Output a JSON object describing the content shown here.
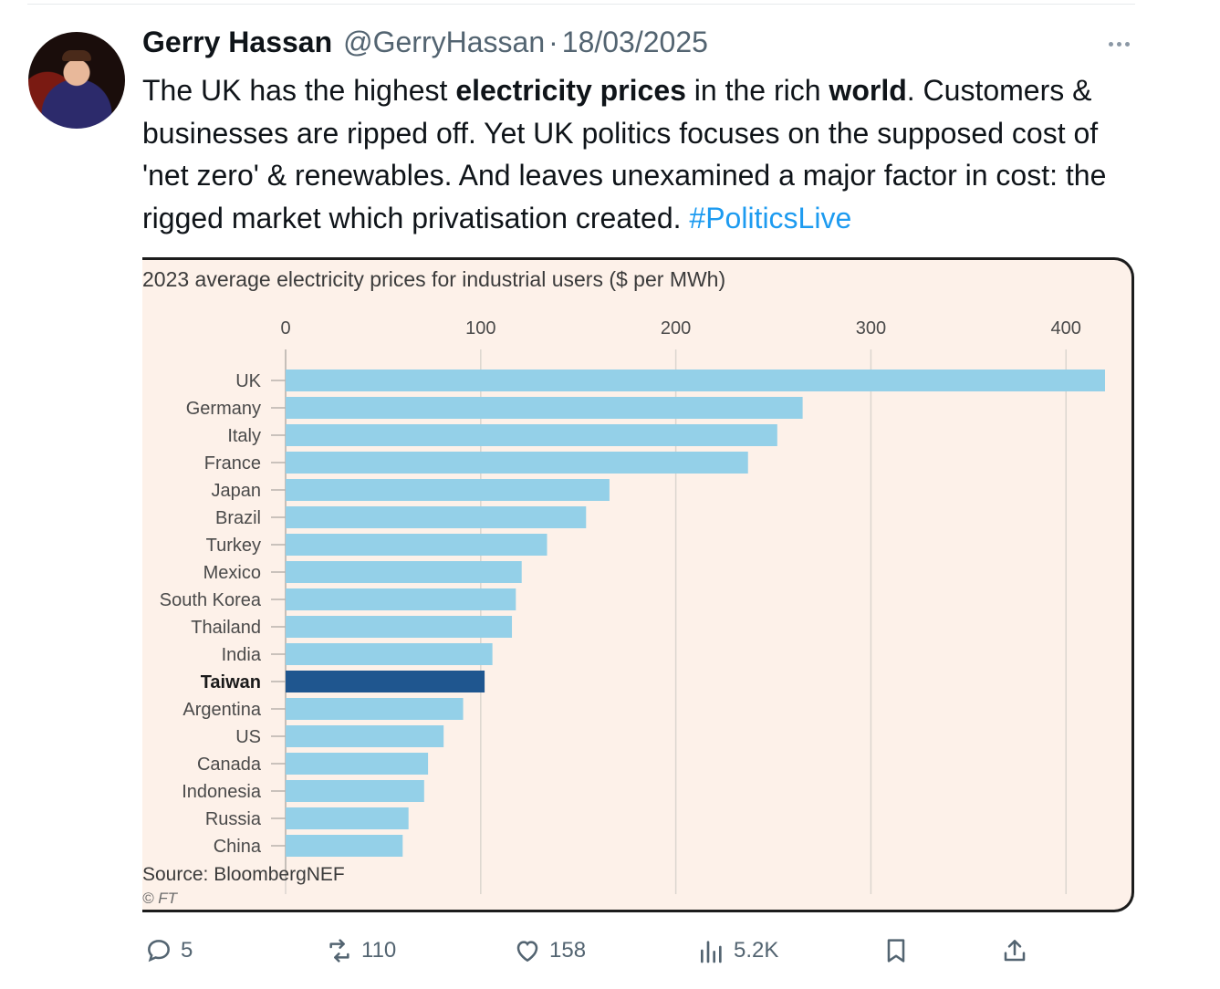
{
  "tweet": {
    "author_name": "Gerry Hassan",
    "handle": "@GerryHassan",
    "separator": "·",
    "date": "18/03/2025",
    "text": {
      "p1": "The UK has the highest ",
      "b1": "electricity prices",
      "p2": " in the rich ",
      "b2": "world",
      "p3": ". Customers & businesses are ripped off. Yet UK politics focuses on the supposed cost of 'net zero' & renewables. And leaves unexamined a major factor in cost: the rigged market which privatisation created. ",
      "hashtag": "#PoliticsLive"
    }
  },
  "chart_data": {
    "type": "bar",
    "orientation": "horizontal",
    "title": "2023 average electricity prices for industrial users ($ per MWh)",
    "categories": [
      "UK",
      "Germany",
      "Italy",
      "France",
      "Japan",
      "Brazil",
      "Turkey",
      "Mexico",
      "South Korea",
      "Thailand",
      "India",
      "Taiwan",
      "Argentina",
      "US",
      "Canada",
      "Indonesia",
      "Russia",
      "China"
    ],
    "values": [
      420,
      265,
      252,
      237,
      166,
      154,
      134,
      121,
      118,
      116,
      106,
      102,
      91,
      81,
      73,
      71,
      63,
      60
    ],
    "highlight": "Taiwan",
    "xlim": [
      0,
      420
    ],
    "xticks": [
      0,
      100,
      200,
      300,
      400
    ],
    "grid": true,
    "colors": {
      "bar": "#94d0e8",
      "highlight": "#1f568f",
      "background": "#fdf1e9",
      "grid": "#dcd6cf"
    },
    "source": "Source: BloombergNEF",
    "credit": "© FT"
  },
  "actions": {
    "replies": "5",
    "reposts": "110",
    "likes": "158",
    "views": "5.2K"
  },
  "icons": [
    "more-icon",
    "reply-icon",
    "repost-icon",
    "like-icon",
    "views-icon",
    "bookmark-icon",
    "share-icon"
  ]
}
